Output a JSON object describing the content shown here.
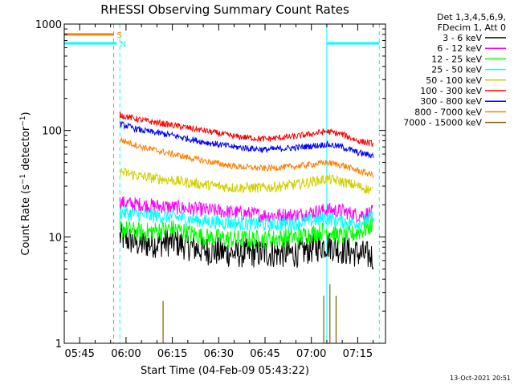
{
  "chart_data": {
    "type": "line",
    "title": "RHESSI Observing Summary Count Rates",
    "xlabel": "Start Time (04-Feb-09 05:43:22)",
    "ylabel": "Count Rate (s⁻¹ detector⁻¹)",
    "ylabel_parts": {
      "main": "Count Rate (s",
      "sup1": "−1",
      "mid": " detector",
      "sup2": "−1",
      "end": ")"
    },
    "y_scale": "log",
    "ylim": [
      1,
      1000
    ],
    "y_ticks": [
      {
        "value": 1,
        "label": "1"
      },
      {
        "value": 10,
        "label": "10"
      },
      {
        "value": 100,
        "label": "100"
      },
      {
        "value": 1000,
        "label": "1000"
      }
    ],
    "xlim": [
      "05:40",
      "07:24"
    ],
    "x_ticks": [
      "05:45",
      "06:00",
      "06:15",
      "06:30",
      "06:45",
      "07:00",
      "07:15"
    ],
    "grid": false,
    "legend_position": "top-right",
    "legend_header": [
      "Det 1,3,4,5,6,9,",
      "FDecim 1, Att 0"
    ],
    "timestamp": "13-Oct-2021 20:51",
    "data_start": "05:58",
    "data_end": "07:20",
    "series": [
      {
        "name": "3 - 6 keV",
        "color": "#000000",
        "x": [
          "05:58",
          "06:05",
          "06:15",
          "06:25",
          "06:35",
          "06:45",
          "06:55",
          "07:05",
          "07:10",
          "07:15",
          "07:20"
        ],
        "y": [
          10,
          8.5,
          9,
          7.5,
          7,
          7,
          7,
          8.5,
          7.5,
          7,
          6.5
        ],
        "noise": 0.14
      },
      {
        "name": "6 - 12 keV",
        "color": "#ff00ff",
        "x": [
          "05:58",
          "06:05",
          "06:15",
          "06:25",
          "06:35",
          "06:45",
          "06:55",
          "07:05",
          "07:10",
          "07:15",
          "07:20"
        ],
        "y": [
          21,
          20,
          19,
          18,
          17,
          16,
          16,
          18,
          17.5,
          16,
          17
        ],
        "noise": 0.07
      },
      {
        "name": "12 - 25 keV",
        "color": "#00ff00",
        "x": [
          "05:58",
          "06:05",
          "06:15",
          "06:25",
          "06:35",
          "06:45",
          "06:55",
          "07:05",
          "07:10",
          "07:15",
          "07:20"
        ],
        "y": [
          12,
          11,
          12,
          10,
          9.5,
          9.5,
          10,
          11.5,
          10,
          11,
          13
        ],
        "noise": 0.09
      },
      {
        "name": "25 - 50 keV",
        "color": "#00ffff",
        "x": [
          "05:58",
          "06:05",
          "06:15",
          "06:25",
          "06:35",
          "06:45",
          "06:55",
          "07:05",
          "07:10",
          "07:15",
          "07:20"
        ],
        "y": [
          17,
          16,
          15.5,
          14,
          13.5,
          13,
          13.5,
          15,
          14,
          13.5,
          15
        ],
        "noise": 0.07
      },
      {
        "name": "50 - 100 keV",
        "color": "#d0d000",
        "x": [
          "05:58",
          "06:05",
          "06:15",
          "06:25",
          "06:35",
          "06:45",
          "06:55",
          "07:05",
          "07:10",
          "07:15",
          "07:20"
        ],
        "y": [
          41,
          37,
          34,
          31,
          29,
          29,
          31,
          35,
          33,
          30,
          27
        ],
        "noise": 0.05
      },
      {
        "name": "100 - 300 keV",
        "color": "#ff0000",
        "x": [
          "05:58",
          "06:05",
          "06:15",
          "06:25",
          "06:35",
          "06:45",
          "06:55",
          "07:05",
          "07:10",
          "07:15",
          "07:20"
        ],
        "y": [
          140,
          125,
          112,
          100,
          88,
          83,
          88,
          98,
          92,
          80,
          75
        ],
        "noise": 0.03
      },
      {
        "name": "300 - 800 keV",
        "color": "#0000ff",
        "x": [
          "05:58",
          "06:05",
          "06:15",
          "06:25",
          "06:35",
          "06:45",
          "06:55",
          "07:05",
          "07:10",
          "07:15",
          "07:20"
        ],
        "y": [
          115,
          100,
          90,
          78,
          70,
          66,
          69,
          74,
          70,
          62,
          58
        ],
        "noise": 0.03
      },
      {
        "name": "800 - 7000 keV",
        "color": "#ff8000",
        "x": [
          "05:58",
          "06:05",
          "06:15",
          "06:25",
          "06:35",
          "06:45",
          "06:55",
          "07:05",
          "07:10",
          "07:15",
          "07:20"
        ],
        "y": [
          82,
          70,
          60,
          52,
          46,
          44,
          46,
          50,
          47,
          42,
          38
        ],
        "noise": 0.03
      },
      {
        "name": "7000 - 15000 keV",
        "color": "#806000",
        "x": [],
        "y": [],
        "noise": 0
      }
    ],
    "spikes": [
      {
        "x": "06:12",
        "y": 2.5
      },
      {
        "x": "07:04",
        "y": 2.8
      },
      {
        "x": "07:06",
        "y": 3.6
      },
      {
        "x": "07:08",
        "y": 2.8
      }
    ],
    "flag_bars": [
      {
        "label": "S",
        "color": "#ff8000",
        "y": 800,
        "x0": "05:40",
        "x1": "05:56"
      },
      {
        "label": "N",
        "color": "#00ffff",
        "y": 660,
        "x0": "05:40",
        "x1": "05:57"
      },
      {
        "label": "",
        "color": "#00ffff",
        "y": 660,
        "x0": "07:05",
        "x1": "07:22"
      }
    ],
    "vlines": [
      {
        "x": "05:40",
        "color": "#00ffff",
        "dashed": false
      },
      {
        "x": "05:56",
        "color": "#ff8000",
        "dashed": true
      },
      {
        "x": "05:58",
        "color": "#00ffff",
        "dashed": true
      },
      {
        "x": "07:05",
        "color": "#00ffff",
        "dashed": false
      },
      {
        "x": "07:22",
        "color": "#00ffff",
        "dashed": true
      }
    ]
  }
}
